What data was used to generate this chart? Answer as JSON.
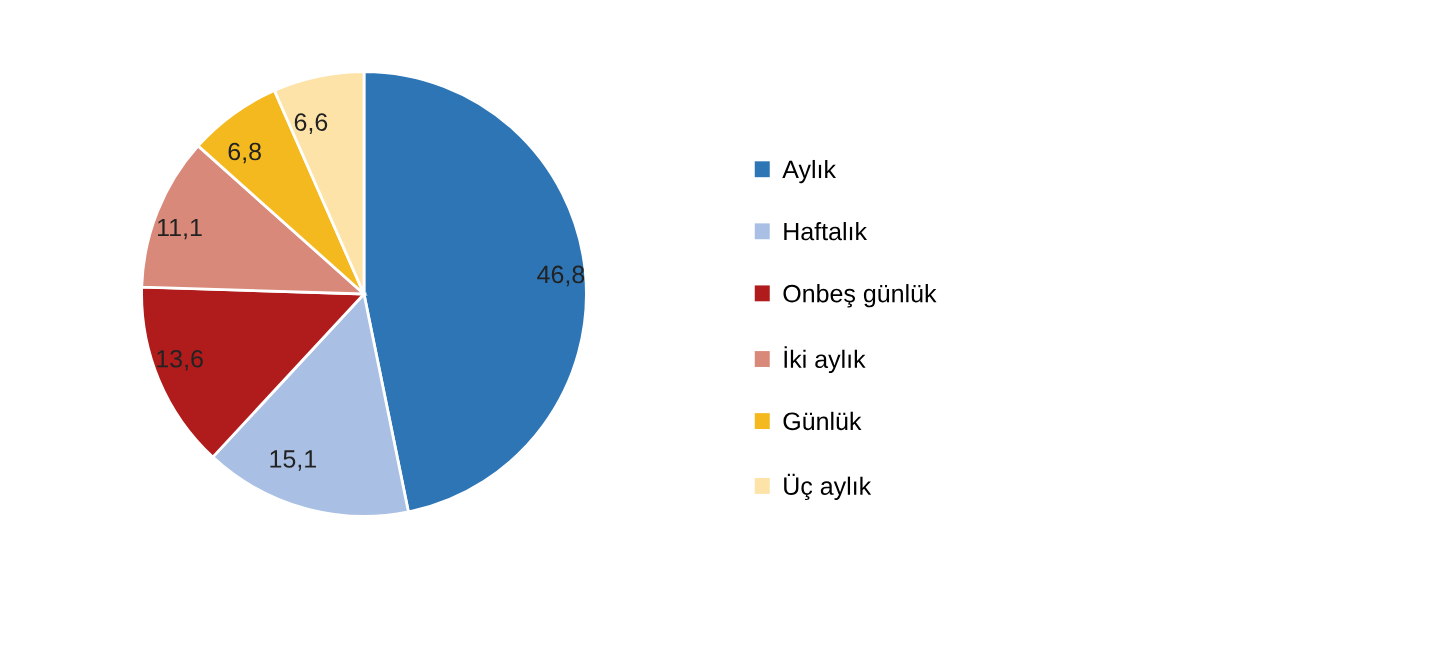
{
  "chart_data": {
    "type": "pie",
    "categories": [
      "Aylık",
      "Haftalık",
      "Onbeş günlük",
      "İki aylık",
      "Günlük",
      "Üç aylık"
    ],
    "values": [
      46.8,
      15.1,
      13.6,
      11.1,
      6.8,
      6.6
    ],
    "value_labels": [
      "46,8",
      "15,1",
      "13,6",
      "11,1",
      "6,8",
      "6,6"
    ],
    "colors": [
      "#2e75b6",
      "#a9c0e4",
      "#b01c1c",
      "#d9897a",
      "#f5b920",
      "#fde3a7"
    ],
    "legend": "right"
  }
}
